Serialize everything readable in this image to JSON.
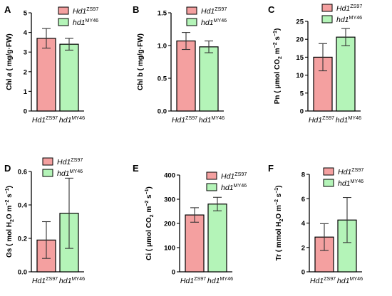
{
  "colors": {
    "wt_fill": "#f4a0a0",
    "mut_fill": "#b4f4b8",
    "axis": "#000000",
    "error_bar": "#333333"
  },
  "legend": {
    "wt": {
      "base": "Hd1",
      "sup": "ZS97"
    },
    "mut": {
      "base": "hd1",
      "sup": "MY46"
    }
  },
  "chart_data": [
    {
      "panel": "A",
      "type": "bar",
      "ylabel": "Chl a ( mg/g·FW)",
      "ylim": [
        0,
        5
      ],
      "yticks": [
        "0",
        "1",
        "2",
        "3",
        "4",
        "5"
      ],
      "categories": [
        "Hd1ZS97",
        "hd1MY46"
      ],
      "values": [
        3.7,
        3.4
      ],
      "errors": [
        0.5,
        0.3
      ],
      "legend_placement": "top-right"
    },
    {
      "panel": "B",
      "type": "bar",
      "ylabel": "Chl b ( mg/g·FW)",
      "ylim": [
        0,
        1.5
      ],
      "yticks": [
        "0.0",
        "0.5",
        "1.0",
        "1.5"
      ],
      "categories": [
        "Hd1ZS97",
        "hd1MY46"
      ],
      "values": [
        1.07,
        0.98
      ],
      "errors": [
        0.13,
        0.09
      ],
      "legend_placement": "top-right"
    },
    {
      "panel": "C",
      "type": "bar",
      "ylabel": "Pn ( μmol CO2 m−2 s−1)",
      "ylim": [
        0,
        25
      ],
      "yticks": [
        "0",
        "5",
        "10",
        "15",
        "20",
        "25"
      ],
      "categories": [
        "Hd1ZS97",
        "hd1MY46"
      ],
      "values": [
        15,
        20.6
      ],
      "errors": [
        3.8,
        2.4
      ],
      "legend_placement": "top-right"
    },
    {
      "panel": "D",
      "type": "bar",
      "ylabel": "Gs ( mol H2O m−2 s−1)",
      "ylim": [
        0,
        0.6
      ],
      "yticks": [
        "0.0",
        "0.2",
        "0.4",
        "0.6"
      ],
      "categories": [
        "Hd1ZS97",
        "hd1MY46"
      ],
      "values": [
        0.19,
        0.35
      ],
      "errors": [
        0.11,
        0.21
      ],
      "legend_placement": "top-right"
    },
    {
      "panel": "E",
      "type": "bar",
      "ylabel": "Ci ( μmol CO2 m−2 s−1)",
      "ylim": [
        0,
        400
      ],
      "yticks": [
        "0",
        "100",
        "200",
        "300",
        "400"
      ],
      "categories": [
        "Hd1ZS97",
        "hd1MY46"
      ],
      "values": [
        235,
        280
      ],
      "errors": [
        30,
        28
      ],
      "legend_placement": "top-right"
    },
    {
      "panel": "F",
      "type": "bar",
      "ylabel": "Tr ( mmol H2O m−2 s−1)",
      "ylim": [
        0,
        8
      ],
      "yticks": [
        "0",
        "2",
        "4",
        "6",
        "8"
      ],
      "categories": [
        "Hd1ZS97",
        "hd1MY46"
      ],
      "values": [
        2.85,
        4.25
      ],
      "errors": [
        1.1,
        1.85
      ],
      "legend_placement": "top-right"
    }
  ]
}
